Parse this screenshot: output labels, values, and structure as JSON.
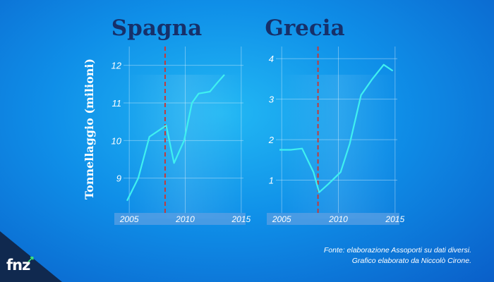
{
  "ylabel": "Tonnellaggio (milioni)",
  "source_lines": [
    "Fonte: elaborazione Assoporti su dati diversi.",
    "Grafico elaborato da Niccolò Cirone."
  ],
  "logo": {
    "text": "fnz",
    "icon": "arrow-up-right-icon"
  },
  "colors": {
    "line": "#3ff0f0",
    "marker": "#c43a3a",
    "title": "#16306a",
    "axis_band": "#5b9fe3"
  },
  "chart_data": [
    {
      "type": "line",
      "title": "Spagna",
      "ylabel": "Tonnellaggio (milioni)",
      "x": [
        2004.8,
        2005.8,
        2006.8,
        2007.8,
        2008.3,
        2009.0,
        2009.9,
        2010.6,
        2011.2,
        2012.2,
        2012.9,
        2013.5
      ],
      "values": [
        8.4,
        9.0,
        10.1,
        10.3,
        10.4,
        9.4,
        10.0,
        11.0,
        11.25,
        11.3,
        11.55,
        11.75
      ],
      "xticks": [
        2005,
        2010,
        2015
      ],
      "yticks": [
        9,
        10,
        11,
        12
      ],
      "xlim": [
        2004.8,
        2015.2
      ],
      "ylim": [
        8.3,
        12.5
      ],
      "marker_x": 2008.2,
      "grid": true
    },
    {
      "type": "line",
      "title": "Grecia",
      "ylabel": "",
      "x": [
        2004.8,
        2005.8,
        2006.8,
        2007.8,
        2008.3,
        2009.1,
        2010.2,
        2011.0,
        2012.0,
        2013.0,
        2014.0,
        2014.8
      ],
      "values": [
        1.75,
        1.75,
        1.78,
        1.2,
        0.7,
        0.9,
        1.2,
        1.9,
        3.1,
        3.5,
        3.85,
        3.7
      ],
      "xticks": [
        2005,
        2010,
        2015
      ],
      "yticks": [
        1,
        2,
        3,
        4
      ],
      "xlim": [
        2004.8,
        2015.2
      ],
      "ylim": [
        0.4,
        4.3
      ],
      "marker_x": 2008.2,
      "grid": true
    }
  ]
}
